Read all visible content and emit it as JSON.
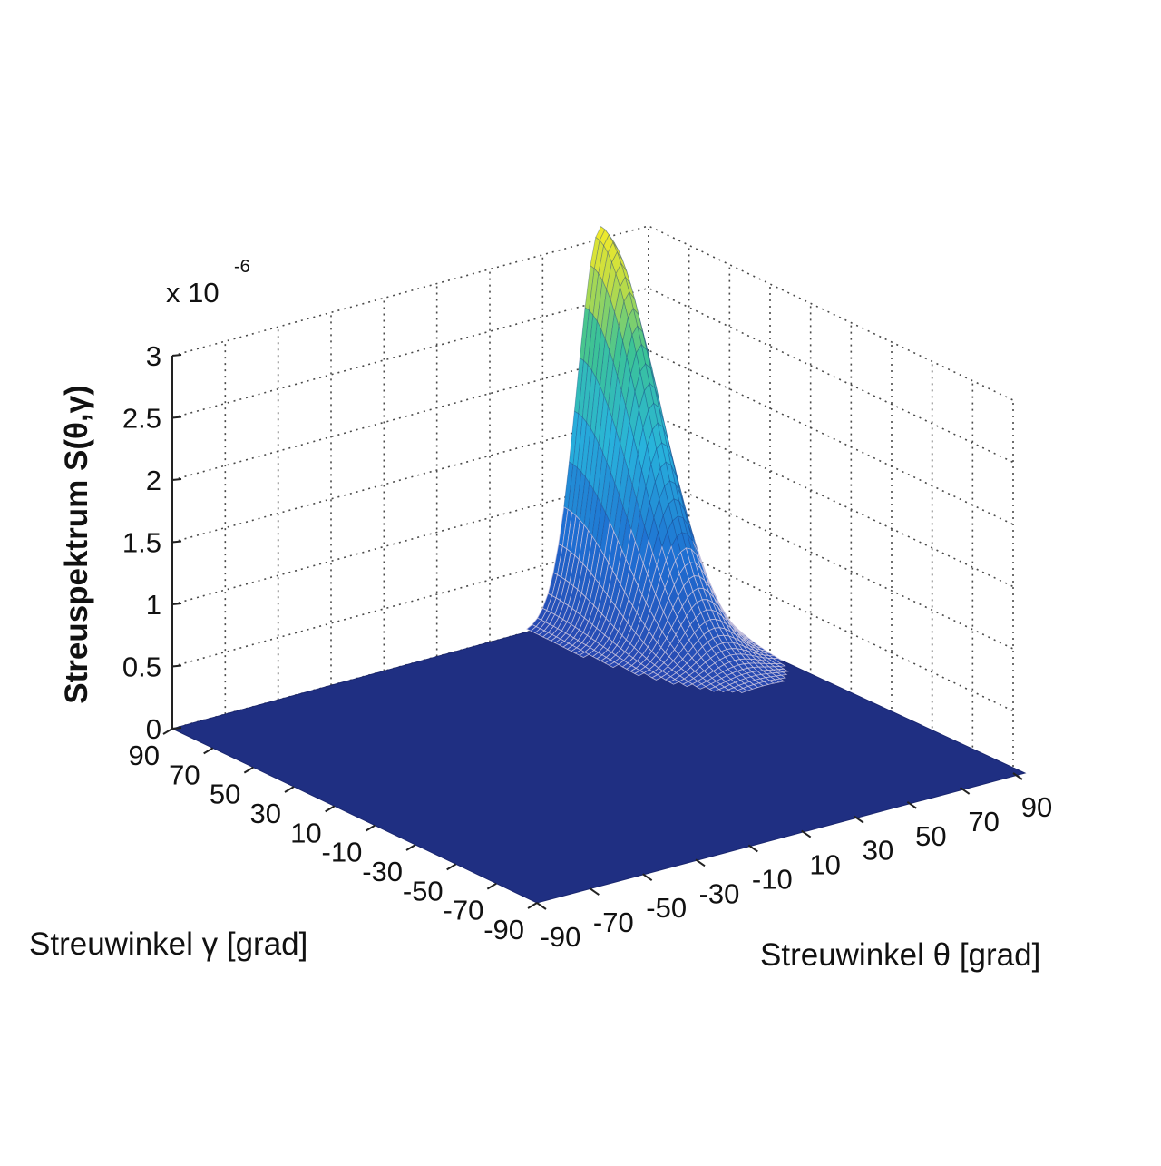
{
  "chart_data": {
    "type": "surface3d",
    "zlabel": "Streuspektrum S(θ,γ)",
    "xlabel": "Streuwinkel θ [grad]",
    "ylabel": "Streuwinkel γ [grad]",
    "z_exponent_label": "x 10",
    "z_exponent": "-6",
    "z_ticks": [
      "0",
      "0.5",
      "1",
      "1.5",
      "2",
      "2.5",
      "3"
    ],
    "z_tick_values": [
      0,
      0.5,
      1,
      1.5,
      2,
      2.5,
      3
    ],
    "zlim": [
      0,
      3
    ],
    "theta_ticks": [
      "-90",
      "-70",
      "-50",
      "-30",
      "-10",
      "10",
      "30",
      "50",
      "70",
      "90"
    ],
    "gamma_ticks": [
      "90",
      "70",
      "50",
      "30",
      "10",
      "-10",
      "-30",
      "-50",
      "-70",
      "-90"
    ],
    "theta_lim": [
      -90,
      90
    ],
    "gamma_lim": [
      -90,
      90
    ],
    "grid": true,
    "floor_color": "#1f2f82",
    "peak": {
      "theta": 72,
      "gamma": 90,
      "value": 3.1
    }
  }
}
